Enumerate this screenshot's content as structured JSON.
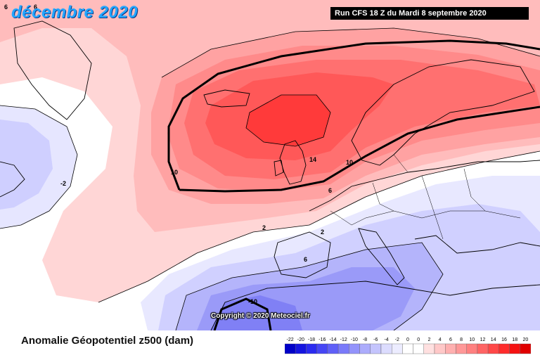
{
  "header": {
    "month_title": "décembre 2020",
    "run_info": "Run CFS 18 Z du Mardi 8 septembre 2020"
  },
  "map": {
    "copyright": "Copyright © 2020 Meteociel.fr",
    "contour_labels": [
      "6",
      "6",
      "-2",
      "10",
      "14",
      "10",
      "6",
      "2",
      "2",
      "6",
      "-10"
    ]
  },
  "footer": {
    "title": "Anomalie Géopotentiel z500 (dam)"
  },
  "legend": {
    "ticks": [
      "-22",
      "-20",
      "-18",
      "-16",
      "-14",
      "-12",
      "-10",
      "-8",
      "-6",
      "-4",
      "-2",
      "0",
      "0",
      "2",
      "4",
      "6",
      "8",
      "10",
      "12",
      "14",
      "16",
      "18",
      "20"
    ],
    "colors": [
      "#0000c8",
      "#1414e0",
      "#2a2af0",
      "#4545f5",
      "#5f5ff8",
      "#7a7afa",
      "#9393fb",
      "#acacfc",
      "#c4c4fd",
      "#dcdcfe",
      "#ececff",
      "#ffffff",
      "#ffffff",
      "#ffe0e0",
      "#ffc8c8",
      "#ffb0b0",
      "#ff9898",
      "#ff8080",
      "#ff6464",
      "#ff4848",
      "#ff2c2c",
      "#f51212",
      "#e00000"
    ]
  }
}
